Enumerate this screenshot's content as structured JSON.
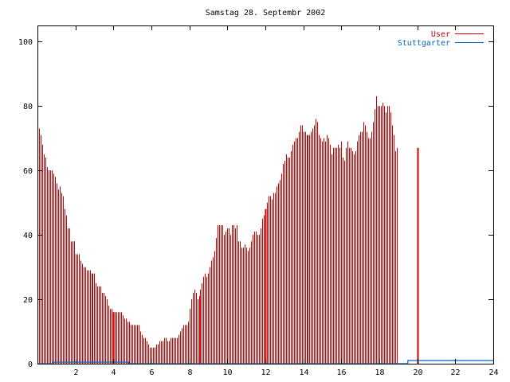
{
  "chart_data": {
    "type": "bar",
    "title": "Samstag 28. Septembr 2002",
    "xlim": [
      0,
      24
    ],
    "ylim": [
      0,
      105
    ],
    "x_ticks": [
      {
        "value": 2,
        "label": "2"
      },
      {
        "value": 4,
        "label": "4"
      },
      {
        "value": 6,
        "label": "6"
      },
      {
        "value": 8,
        "label": "8"
      },
      {
        "value": 10,
        "label": "10"
      },
      {
        "value": 12,
        "label": "12"
      },
      {
        "value": 14,
        "label": "14"
      },
      {
        "value": 16,
        "label": "16"
      },
      {
        "value": 18,
        "label": "18"
      },
      {
        "value": 20,
        "label": "20"
      },
      {
        "value": 22,
        "label": "22"
      },
      {
        "value": 24,
        "label": "24"
      }
    ],
    "y_ticks": [
      {
        "value": 0,
        "label": "0"
      },
      {
        "value": 20,
        "label": "20"
      },
      {
        "value": 40,
        "label": "40"
      },
      {
        "value": 60,
        "label": "60"
      },
      {
        "value": 80,
        "label": "80"
      },
      {
        "value": 100,
        "label": "100"
      }
    ],
    "legend_position": "top-right",
    "grid": false,
    "series": [
      {
        "name": "User",
        "color": "#cc0000",
        "style": "impulses",
        "x_start": 0,
        "x_step": 0.0833,
        "values": [
          74,
          73,
          71,
          68,
          65,
          64,
          61,
          60,
          60,
          60,
          59,
          58,
          56,
          54,
          55,
          53,
          52,
          48,
          46,
          42,
          42,
          38,
          38,
          38,
          34,
          34,
          34,
          32,
          31,
          30,
          30,
          29,
          29,
          29,
          28,
          28,
          28,
          25,
          24,
          24,
          24,
          22,
          22,
          21,
          20,
          18,
          17,
          17,
          16,
          16,
          16,
          16,
          16,
          16,
          15,
          14,
          14,
          13,
          13,
          12,
          12,
          12,
          12,
          12,
          12,
          10,
          9,
          8,
          8,
          7,
          6,
          5,
          5,
          5,
          5,
          6,
          6,
          7,
          7,
          7,
          8,
          8,
          7,
          7,
          8,
          8,
          8,
          8,
          8,
          9,
          10,
          11,
          12,
          12,
          12,
          13,
          17,
          20,
          22,
          23,
          22,
          20,
          21,
          23,
          25,
          27,
          28,
          27,
          28,
          30,
          32,
          33,
          35,
          39,
          43,
          43,
          43,
          43,
          40,
          41,
          42,
          42,
          40,
          43,
          43,
          42,
          43,
          38,
          38,
          36,
          36,
          37,
          36,
          35,
          36,
          38,
          40,
          41,
          41,
          40,
          40,
          42,
          45,
          46,
          48,
          50,
          52,
          52,
          51,
          53,
          53,
          55,
          56,
          57,
          59,
          62,
          63,
          65,
          64,
          64,
          66,
          68,
          69,
          70,
          70,
          72,
          74,
          74,
          72,
          72,
          71,
          71,
          71,
          72,
          73,
          74,
          76,
          75,
          71,
          70,
          69,
          70,
          69,
          71,
          70,
          68,
          65,
          67,
          67,
          67,
          68,
          67,
          69,
          64,
          63,
          67,
          69,
          67,
          67,
          66,
          65,
          66,
          69,
          71,
          72,
          72,
          75,
          74,
          72,
          70,
          70,
          72,
          75,
          79,
          83,
          80,
          80,
          80,
          81,
          80,
          78,
          80,
          80,
          78,
          74,
          71,
          66,
          67
        ]
      },
      {
        "name": "Stuttgarter",
        "color": "#0066cc",
        "style": "line",
        "points": [
          [
            0,
            0
          ],
          [
            0.8,
            0
          ],
          [
            0.8,
            0.5
          ],
          [
            4.8,
            0.5
          ],
          [
            4.8,
            0
          ],
          [
            19.5,
            0
          ],
          [
            19.5,
            1
          ],
          [
            24,
            1
          ]
        ]
      }
    ],
    "highlight_x": [
      4,
      12,
      20
    ]
  }
}
